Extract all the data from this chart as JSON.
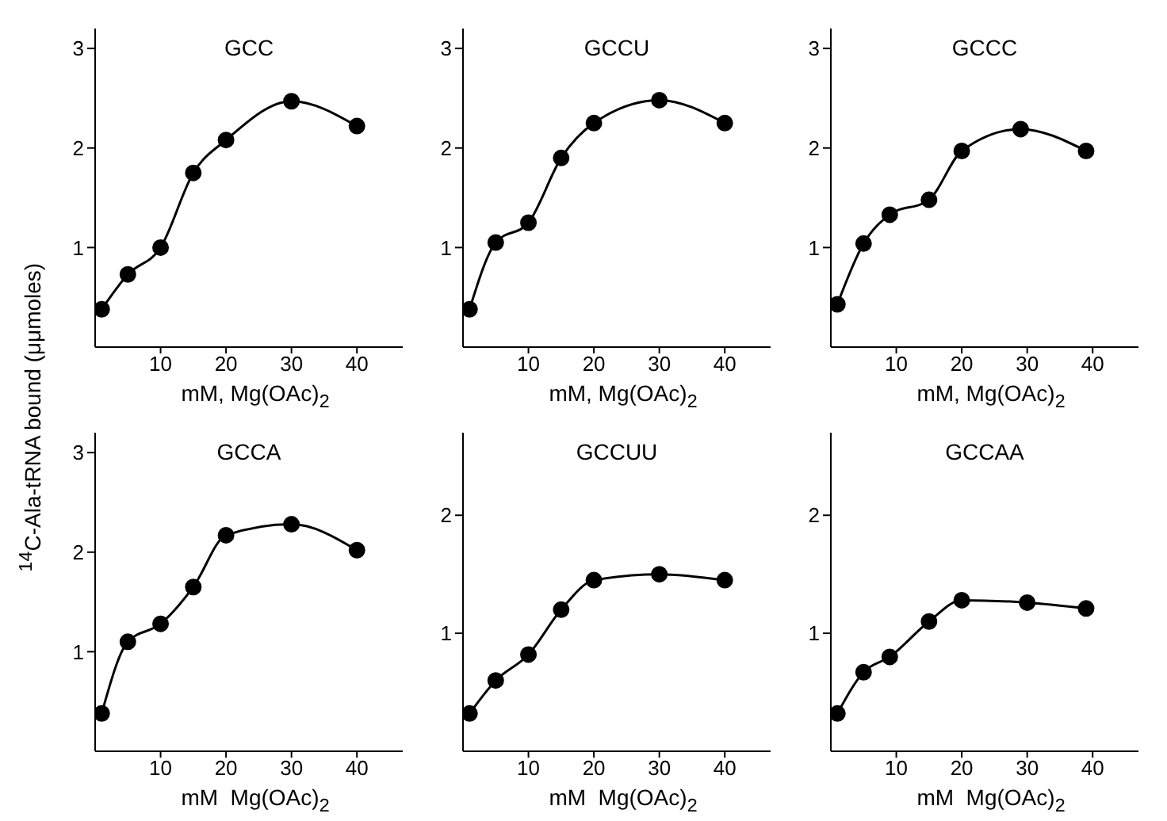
{
  "chart_data": [
    {
      "type": "line",
      "title": "GCC",
      "ylabel": "$^{14}$C-Ala-tRNA bound (μμmoles)",
      "xlabel": "mM, Mg(OAc)$_{2}$",
      "x": [
        1,
        5,
        10,
        15,
        20,
        30,
        40
      ],
      "values": [
        0.38,
        0.73,
        1.0,
        1.75,
        2.08,
        2.47,
        2.22
      ],
      "color": "#000000",
      "marker": "circle",
      "xlim": [
        0,
        47
      ],
      "xticks": [
        10,
        20,
        30,
        40
      ],
      "ylim": [
        0,
        3.2
      ],
      "yticks": [
        1,
        2,
        3
      ]
    },
    {
      "type": "line",
      "title": "GCCU",
      "xlabel": "mM, Mg(OAc)$_{2}$",
      "x": [
        1,
        5,
        10,
        15,
        20,
        30,
        40
      ],
      "values": [
        0.38,
        1.05,
        1.25,
        1.9,
        2.25,
        2.48,
        2.25
      ],
      "color": "#000000",
      "marker": "circle",
      "xlim": [
        0,
        47
      ],
      "xticks": [
        10,
        20,
        30,
        40
      ],
      "ylim": [
        0,
        3.2
      ],
      "yticks": [
        1,
        2,
        3
      ]
    },
    {
      "type": "line",
      "title": "GCCC",
      "xlabel": "mM, Mg(OAc)$_{2}$",
      "x": [
        1,
        5,
        9,
        15,
        20,
        29,
        39
      ],
      "values": [
        0.43,
        1.04,
        1.33,
        1.48,
        1.97,
        2.19,
        1.97
      ],
      "color": "#000000",
      "marker": "circle",
      "xlim": [
        0,
        47
      ],
      "xticks": [
        10,
        20,
        30,
        40
      ],
      "ylim": [
        0,
        3.2
      ],
      "yticks": [
        1,
        2,
        3
      ]
    },
    {
      "type": "line",
      "title": "GCCA",
      "xlabel": "mM  Mg(OAc)$_{2}$",
      "x": [
        1,
        5,
        10,
        15,
        20,
        30,
        40
      ],
      "values": [
        0.38,
        1.1,
        1.28,
        1.65,
        2.17,
        2.28,
        2.02
      ],
      "color": "#000000",
      "marker": "circle",
      "xlim": [
        0,
        47
      ],
      "xticks": [
        10,
        20,
        30,
        40
      ],
      "ylim": [
        0,
        3.2
      ],
      "yticks": [
        1,
        2,
        3
      ]
    },
    {
      "type": "line",
      "title": "GCCUU",
      "xlabel": "mM  Mg(OAc)$_{2}$",
      "x": [
        1,
        5,
        10,
        15,
        20,
        30,
        40
      ],
      "values": [
        0.32,
        0.6,
        0.82,
        1.2,
        1.45,
        1.5,
        1.45
      ],
      "color": "#000000",
      "marker": "circle",
      "xlim": [
        0,
        47
      ],
      "xticks": [
        10,
        20,
        30,
        40
      ],
      "ylim": [
        0,
        2.7
      ],
      "yticks": [
        1,
        2
      ]
    },
    {
      "type": "line",
      "title": "GCCAA",
      "xlabel": "mM  Mg(OAc)$_{2}$",
      "x": [
        1,
        5,
        9,
        15,
        20,
        30,
        39
      ],
      "values": [
        0.32,
        0.67,
        0.8,
        1.1,
        1.28,
        1.26,
        1.21
      ],
      "color": "#000000",
      "marker": "circle",
      "xlim": [
        0,
        47
      ],
      "xticks": [
        10,
        20,
        30,
        40
      ],
      "ylim": [
        0,
        2.7
      ],
      "yticks": [
        1,
        2
      ]
    }
  ]
}
